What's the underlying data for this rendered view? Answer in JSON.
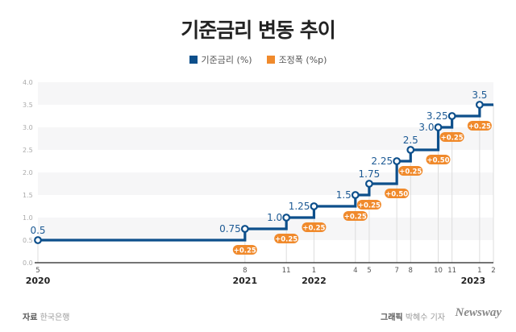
{
  "chart_data": {
    "type": "line",
    "title": "기준금리 변동 추이",
    "legend": [
      {
        "label": "기준금리 (%)",
        "color": "#0d4f8b"
      },
      {
        "label": "조정폭 (%p)",
        "color": "#f08a2c"
      }
    ],
    "legend_placement": "top-center",
    "ylim": [
      0,
      4.0
    ],
    "yticks": [
      "0.0",
      "0.5",
      "1.0",
      "1.5",
      "2.0",
      "2.5",
      "3.0",
      "3.5",
      "4.0"
    ],
    "xticks": [
      {
        "m": 0,
        "label": "5",
        "year": "2020"
      },
      {
        "m": 15,
        "label": "8",
        "year": "2021"
      },
      {
        "m": 18,
        "label": "11"
      },
      {
        "m": 20,
        "label": "1",
        "year": "2022"
      },
      {
        "m": 23,
        "label": "4"
      },
      {
        "m": 24,
        "label": "5"
      },
      {
        "m": 26,
        "label": "7"
      },
      {
        "m": 27,
        "label": "8"
      },
      {
        "m": 29,
        "label": "10"
      },
      {
        "m": 30,
        "label": "11"
      },
      {
        "m": 32,
        "label": "1",
        "year": "2023"
      },
      {
        "m": 33,
        "label": "2"
      }
    ],
    "points": [
      {
        "date": "2020-05",
        "m": 0,
        "value": 0.5,
        "label": "0.5",
        "change": ""
      },
      {
        "date": "2021-08",
        "m": 15,
        "value": 0.75,
        "label": "0.75",
        "change": "+0.25"
      },
      {
        "date": "2021-11",
        "m": 18,
        "value": 1.0,
        "label": "1.0",
        "change": "+0.25"
      },
      {
        "date": "2022-01",
        "m": 20,
        "value": 1.25,
        "label": "1.25",
        "change": "+0.25"
      },
      {
        "date": "2022-04",
        "m": 23,
        "value": 1.5,
        "label": "1.5",
        "change": "+0.25"
      },
      {
        "date": "2022-05",
        "m": 24,
        "value": 1.75,
        "label": "1.75",
        "change": "+0.25"
      },
      {
        "date": "2022-07",
        "m": 26,
        "value": 2.25,
        "label": "2.25",
        "change": "+0.50"
      },
      {
        "date": "2022-08",
        "m": 27,
        "value": 2.5,
        "label": "2.5",
        "change": "+0.25"
      },
      {
        "date": "2022-10",
        "m": 29,
        "value": 3.0,
        "label": "3.0",
        "change": "+0.50"
      },
      {
        "date": "2022-11",
        "m": 30,
        "value": 3.25,
        "label": "3.25",
        "change": "+0.25"
      },
      {
        "date": "2023-01",
        "m": 32,
        "value": 3.5,
        "label": "3.5",
        "change": "+0.25"
      }
    ],
    "x_end_m": 33
  },
  "footer": {
    "source_label": "자료",
    "source": "한국은행",
    "credit_label": "그래픽",
    "credit": "박혜수 기자",
    "logo": "Newsway"
  }
}
